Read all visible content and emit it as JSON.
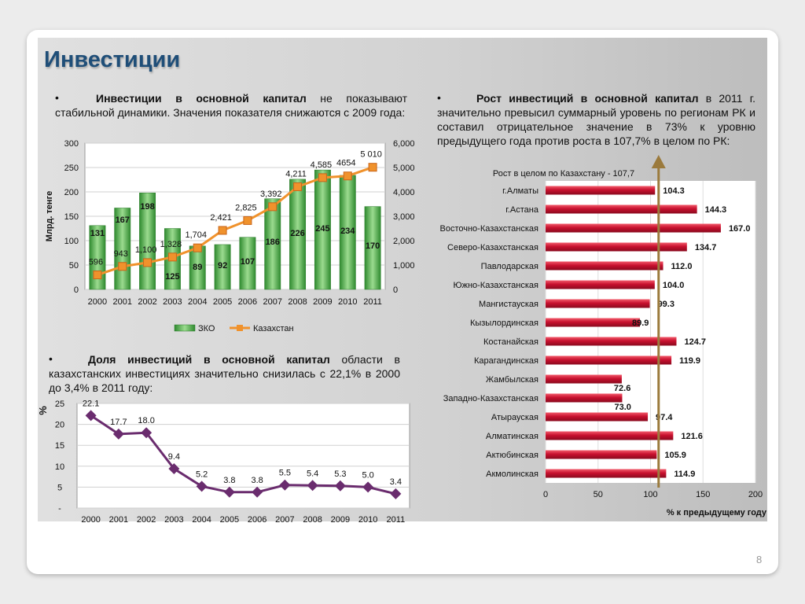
{
  "slide": {
    "title": "Инвестиции",
    "page_number": "8"
  },
  "texts": {
    "b1_bullet": "•",
    "b1_bold": "Инвестиции в основной капитал",
    "b1_rest": " не показывают стабильной динамики. Значения показателя снижаются с 2009 года:",
    "b2_bullet": "•",
    "b2_bold": "Рост инвестиций в основной капитал",
    "b2_rest": " в 2011 г. значительно превысил суммарный уровень по регионам РК и составил отрицательное значение в 73% к уровню предыдущего года против роста в 107,7% в целом по РК:",
    "b3_bullet": "•",
    "b3_bold": "Доля инвестиций в основной капитал",
    "b3_rest": " области в казахстанских инвестициях значительно снизилась с 22,1% в 2000 до 3,4% в 2011 году:"
  },
  "chart_data": [
    {
      "type": "bar",
      "categories": [
        "2000",
        "2001",
        "2002",
        "2003",
        "2004",
        "2005",
        "2006",
        "2007",
        "2008",
        "2009",
        "2010",
        "2011"
      ],
      "ylabel": "Млрд. тенге",
      "ylim": [
        0,
        300
      ],
      "y_ticks": [
        "0",
        "50",
        "100",
        "150",
        "200",
        "250",
        "300"
      ],
      "y2lim": [
        0,
        6000
      ],
      "y2_ticks": [
        "0",
        "1,000",
        "2,000",
        "3,000",
        "4,000",
        "5,000",
        "6,000"
      ],
      "legend_position": "bottom",
      "series": [
        {
          "name": "ЗКО",
          "type": "bar",
          "axis": "left",
          "color": "#5cb85c",
          "values": [
            131,
            167,
            198,
            125,
            89,
            92,
            107,
            186,
            226,
            245,
            234,
            170
          ],
          "labels": [
            "131",
            "167",
            "198",
            "125",
            "89",
            "92",
            "107",
            "186",
            "226",
            "245",
            "234",
            "170"
          ]
        },
        {
          "name": "Казахстан",
          "type": "line",
          "axis": "right",
          "color": "#f0922c",
          "values": [
            596,
            943,
            1100,
            1328,
            1704,
            2421,
            2825,
            3392,
            4211,
            4585,
            4654,
            5010
          ],
          "labels": [
            "596",
            "943",
            "1,100",
            "1,328",
            "1,704",
            "2,421",
            "2,825",
            "3,392",
            "4,211",
            "4,585",
            "4654",
            "5 010"
          ]
        }
      ]
    },
    {
      "type": "line",
      "categories": [
        "2000",
        "2001",
        "2002",
        "2003",
        "2004",
        "2005",
        "2006",
        "2007",
        "2008",
        "2009",
        "2010",
        "2011"
      ],
      "ylabel": "%",
      "ylim": [
        0,
        25
      ],
      "y_ticks": [
        "-",
        "5",
        "10",
        "15",
        "20",
        "25"
      ],
      "color": "#6a2c6e",
      "values": [
        22.1,
        17.7,
        18.0,
        9.4,
        5.2,
        3.8,
        3.8,
        5.5,
        5.4,
        5.3,
        5.0,
        3.4
      ],
      "labels": [
        "22.1",
        "17.7",
        "18.0",
        "9.4",
        "5.2",
        "3.8",
        "3.8",
        "5.5",
        "5.4",
        "5.3",
        "5.0",
        "3.4"
      ]
    },
    {
      "type": "bar",
      "orientation": "horizontal",
      "annotation": "Рост в целом по Казахстану - 107,7",
      "reference_value": 107.7,
      "xlabel": "% к предыдущему году",
      "xlim": [
        0,
        200
      ],
      "x_ticks": [
        "0",
        "50",
        "100",
        "150",
        "200"
      ],
      "color": "#c8102e",
      "categories": [
        "г.Алматы",
        "г.Астана",
        "Восточно-Казахстанская",
        "Северо-Казахстанская",
        "Павлодарская",
        "Южно-Казахстанская",
        "Мангистауская",
        "Кызылординская",
        "Костанайская",
        "Карагандинская",
        "Жамбылская",
        "Западно-Казахстанская",
        "Атырауская",
        "Алматинская",
        "Актюбинская",
        "Акмолинская"
      ],
      "values": [
        104.3,
        144.3,
        167.0,
        134.7,
        112.0,
        104.0,
        99.3,
        89.9,
        124.7,
        119.9,
        72.6,
        73.0,
        97.4,
        121.6,
        105.9,
        114.9
      ],
      "labels": [
        "104.3",
        "144.3",
        "167.0",
        "134.7",
        "112.0",
        "104.0",
        "99.3",
        "89.9",
        "124.7",
        "119.9",
        "72.6",
        "73.0",
        "97.4",
        "121.6",
        "105.9",
        "114.9"
      ]
    }
  ]
}
